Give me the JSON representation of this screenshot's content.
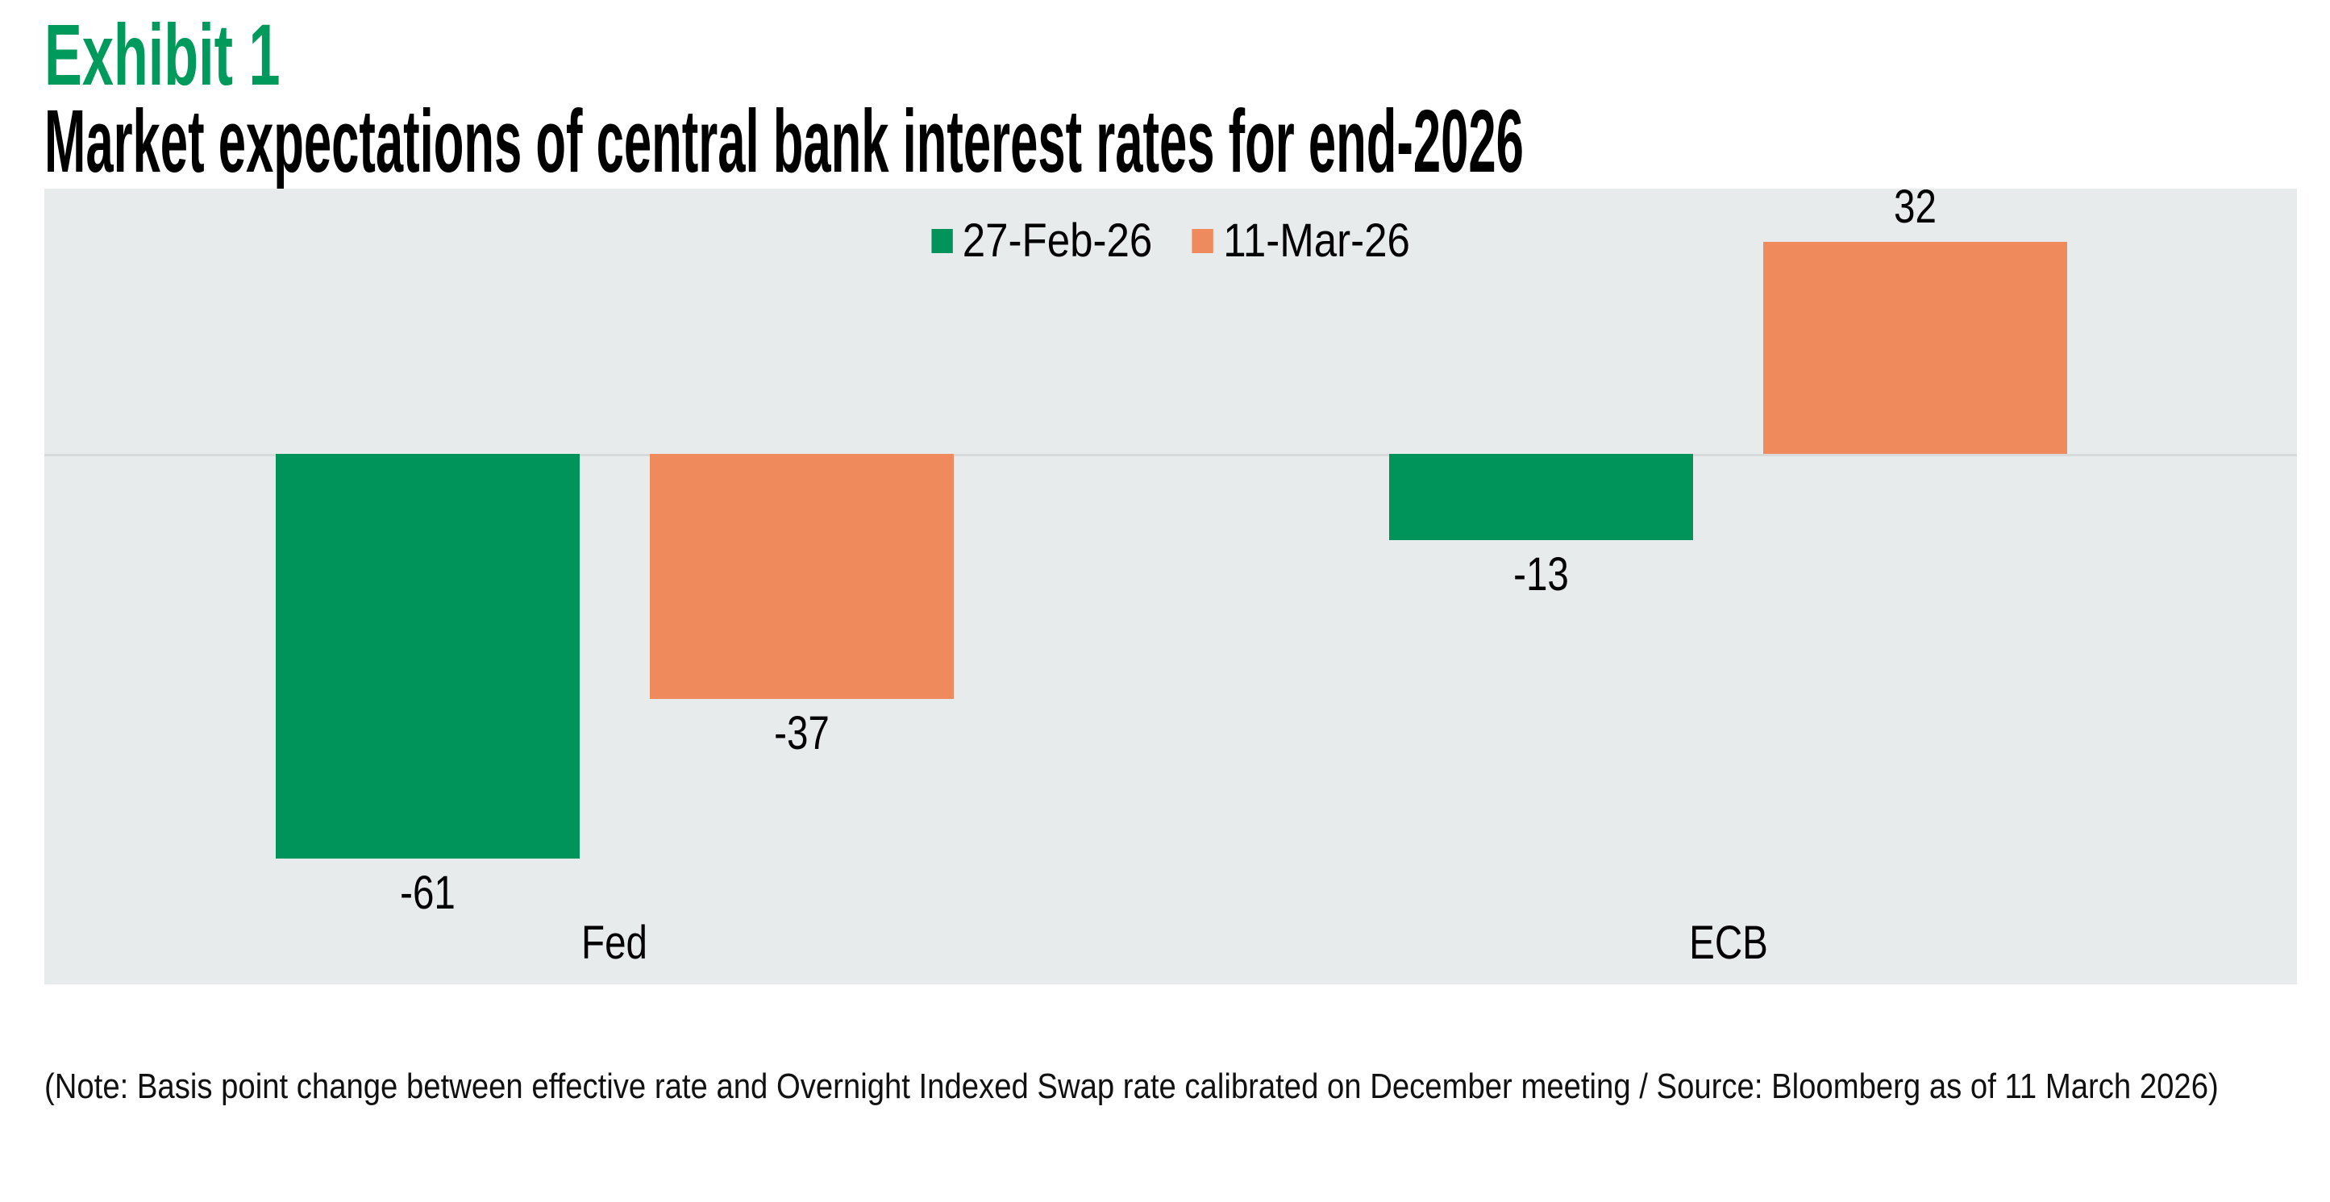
{
  "header": {
    "exhibit_label": "Exhibit 1",
    "title": "Market expectations of central bank interest rates for end-2026"
  },
  "chart_data": {
    "type": "bar",
    "categories": [
      "Fed",
      "ECB"
    ],
    "series": [
      {
        "name": "27-Feb-26",
        "color": "#00935A",
        "values": [
          -61,
          -13
        ]
      },
      {
        "name": "11-Mar-26",
        "color": "#EF8A5C",
        "values": [
          -37,
          32
        ]
      }
    ],
    "title": "Market expectations of central bank interest rates for end-2026",
    "xlabel": "",
    "ylabel": "",
    "unit": "basis points",
    "ylim": [
      -80,
      40
    ],
    "grid": false,
    "legend_position": "top-center",
    "data_labels_shown": true,
    "plot_background": "#E8EBEC",
    "zero_line_color": "#D7DADB"
  },
  "legend": [
    {
      "label": "27-Feb-26",
      "color": "#00935A"
    },
    {
      "label": "11-Mar-26",
      "color": "#EF8A5C"
    }
  ],
  "footnote": "(Note: Basis point change between effective rate and Overnight Indexed Swap rate calibrated on December meeting / Source: Bloomberg as of 11 March 2026)",
  "colors": {
    "exhibit_green": "#009B5C",
    "series_green": "#00935A",
    "series_orange": "#EF8A5C",
    "plot_background": "#E8EBEC"
  }
}
